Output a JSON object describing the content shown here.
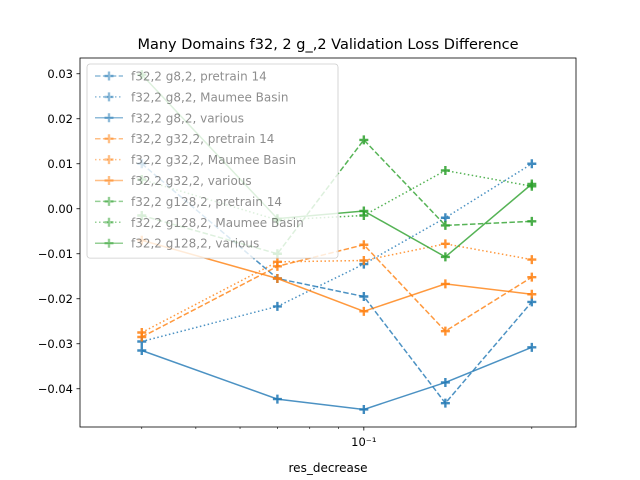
{
  "figure": {
    "title": "Many Domains f32, 2 g_,2 Validation Loss Difference",
    "xlabel": "res_decrease",
    "ylabel": "",
    "x_tick_label": "10⁻¹"
  },
  "chart_data": {
    "type": "line",
    "title": "Many Domains f32, 2 g_,2 Validation Loss Difference",
    "xlabel": "res_decrease",
    "ylabel": "",
    "x_scale": "log",
    "x": [
      0.04,
      0.07,
      0.1,
      0.14,
      0.2
    ],
    "xlim": [
      0.031,
      0.24
    ],
    "ylim": [
      -0.0485,
      0.0335
    ],
    "y_ticks": [
      0.03,
      0.02,
      0.01,
      0.0,
      -0.01,
      -0.02,
      -0.03,
      -0.04
    ],
    "y_tick_labels": [
      "0.03",
      "0.02",
      "0.01",
      "0.00",
      "−0.01",
      "−0.02",
      "−0.03",
      "−0.04"
    ],
    "x_major_ticks": [
      0.1
    ],
    "x_minor_ticks": [
      0.04,
      0.05,
      0.06,
      0.07,
      0.08,
      0.09,
      0.2
    ],
    "legend_position": "top-left",
    "grid": false,
    "marker": "plus",
    "series": [
      {
        "name": "f32,2 g8,2, pretrain 14",
        "color": "#1f77b4",
        "dash": "dashed",
        "values": [
          0.01,
          -0.0155,
          -0.0195,
          -0.0432,
          -0.0207
        ]
      },
      {
        "name": "f32,2 g8,2, Maumee Basin",
        "color": "#1f77b4",
        "dash": "dotted",
        "values": [
          -0.0295,
          -0.0217,
          -0.0123,
          -0.002,
          0.01
        ]
      },
      {
        "name": "f32,2 g8,2, various",
        "color": "#1f77b4",
        "dash": "solid",
        "values": [
          -0.0315,
          -0.0423,
          -0.0446,
          -0.0386,
          -0.0308
        ]
      },
      {
        "name": "f32,2 g32,2, pretrain 14",
        "color": "#ff7f0e",
        "dash": "dashed",
        "values": [
          -0.0285,
          -0.0128,
          -0.008,
          -0.0272,
          -0.0152
        ]
      },
      {
        "name": "f32,2 g32,2, Maumee Basin",
        "color": "#ff7f0e",
        "dash": "dotted",
        "values": [
          -0.0275,
          -0.0118,
          -0.0115,
          -0.0078,
          -0.0113
        ]
      },
      {
        "name": "f32,2 g32,2, various",
        "color": "#ff7f0e",
        "dash": "solid",
        "values": [
          -0.007,
          -0.0155,
          -0.0228,
          -0.0167,
          -0.019
        ]
      },
      {
        "name": "f32,2 g128,2, pretrain 14",
        "color": "#2ca02c",
        "dash": "dashed",
        "values": [
          -0.0015,
          -0.01,
          0.0153,
          -0.0037,
          -0.0028
        ]
      },
      {
        "name": "f32,2 g128,2, Maumee Basin",
        "color": "#2ca02c",
        "dash": "dotted",
        "values": [
          0.0065,
          -0.0025,
          -0.0015,
          0.0085,
          0.005
        ]
      },
      {
        "name": "f32,2 g128,2, various",
        "color": "#2ca02c",
        "dash": "solid",
        "values": [
          0.0298,
          -0.0022,
          -0.0005,
          -0.0107,
          0.0055
        ]
      }
    ]
  }
}
